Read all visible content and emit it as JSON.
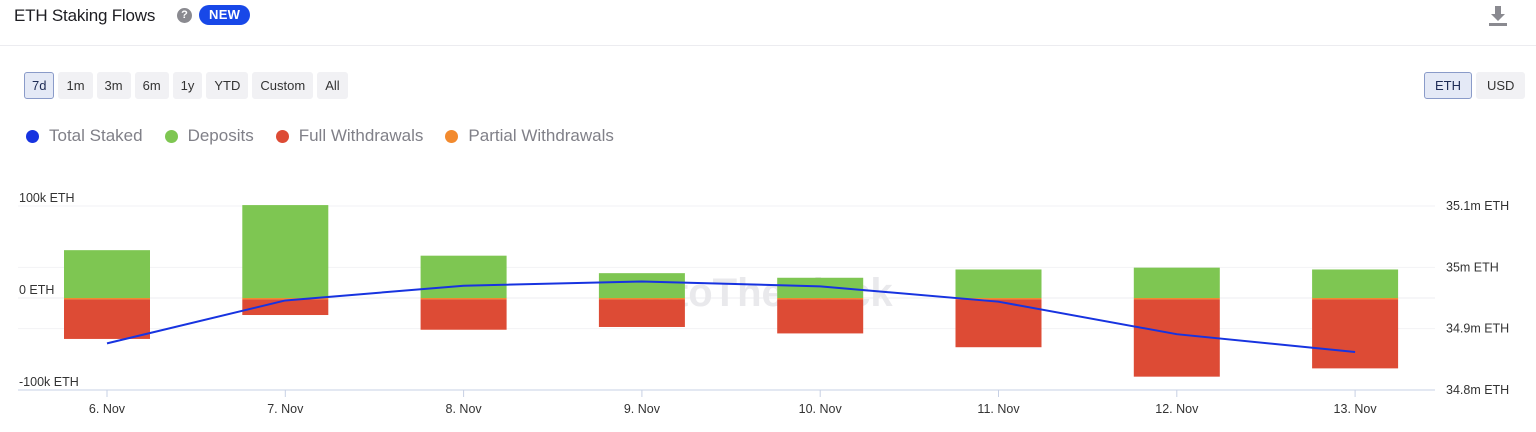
{
  "header": {
    "title": "ETH Staking Flows",
    "badge": "NEW",
    "help_icon": "question-circle-icon",
    "download_icon": "download-icon"
  },
  "range_buttons": [
    "7d",
    "1m",
    "3m",
    "6m",
    "1y",
    "YTD",
    "Custom",
    "All"
  ],
  "range_selected": "7d",
  "unit_buttons": [
    "ETH",
    "USD"
  ],
  "unit_selected": "ETH",
  "watermark": "IntoTheBlock",
  "chart_data": {
    "type": "bar",
    "categories": [
      "6. Nov",
      "7. Nov",
      "8. Nov",
      "9. Nov",
      "10. Nov",
      "11. Nov",
      "12. Nov",
      "13. Nov"
    ],
    "series": [
      {
        "name": "Total Staked",
        "kind": "line",
        "axis": "right",
        "color": "#1733e0",
        "values": [
          34.876,
          34.946,
          34.97,
          34.977,
          34.969,
          34.944,
          34.891,
          34.862
        ]
      },
      {
        "name": "Deposits",
        "kind": "bar",
        "axis": "left",
        "color": "#7ec652",
        "values": [
          52000,
          101000,
          46000,
          27000,
          22000,
          31000,
          33000,
          31000
        ]
      },
      {
        "name": "Full Withdrawals",
        "kind": "bar",
        "axis": "left",
        "color": "#dd4b35",
        "values": [
          -43000,
          -17000,
          -33000,
          -30000,
          -37000,
          -52000,
          -84000,
          -75000
        ]
      },
      {
        "name": "Partial Withdrawals",
        "kind": "bar",
        "axis": "left",
        "color": "#f28a2e",
        "values": [
          -1500,
          -1500,
          -1500,
          -1500,
          -1500,
          -1500,
          -1500,
          -1500
        ]
      }
    ],
    "left_axis": {
      "ticks": [
        100000,
        0,
        -100000
      ],
      "tick_labels": [
        "100k ETH",
        "0 ETH",
        "-100k ETH"
      ],
      "range": [
        -100000,
        100000
      ]
    },
    "right_axis": {
      "ticks": [
        35.1,
        35.0,
        34.9,
        34.8
      ],
      "tick_labels": [
        "35.1m ETH",
        "35m ETH",
        "34.9m ETH",
        "34.8m ETH"
      ],
      "range": [
        34.8,
        35.1
      ]
    },
    "grid": true,
    "legend_position": "top-left"
  }
}
